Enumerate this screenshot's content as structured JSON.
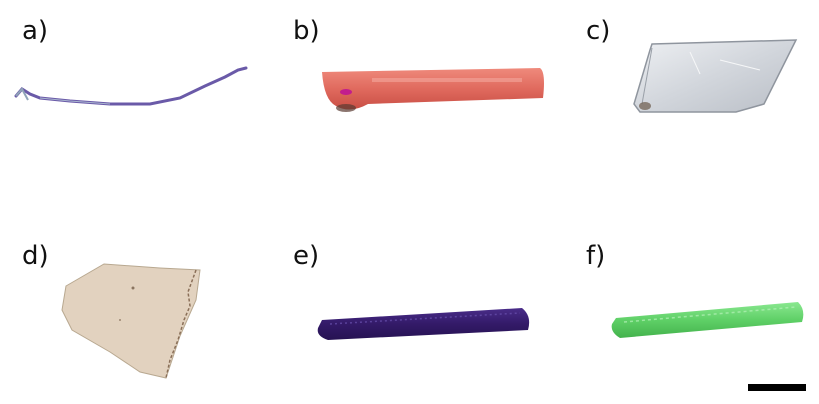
{
  "panels": [
    {
      "label": "a)",
      "specimen": "thin-purple-fiber",
      "color": "#6a5aa8"
    },
    {
      "label": "b)",
      "specimen": "red-bar",
      "color": "#e06a5e"
    },
    {
      "label": "c)",
      "specimen": "clear-transparent-film",
      "color": "#d7dadf"
    },
    {
      "label": "d)",
      "specimen": "beige-fabric-piece",
      "color": "#e2d2bf"
    },
    {
      "label": "e)",
      "specimen": "dark-purple-rod",
      "color": "#3a2170"
    },
    {
      "label": "f)",
      "specimen": "green-rod",
      "color": "#5fd067"
    }
  ],
  "scale_bar": {
    "color": "#000000"
  }
}
